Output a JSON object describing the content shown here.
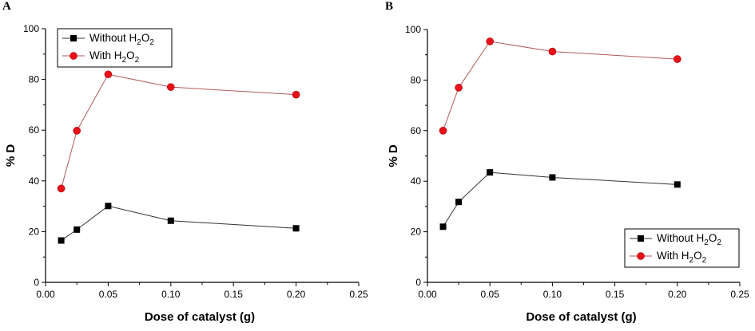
{
  "chart_data": [
    {
      "type": "line",
      "panel_label": "A",
      "xlabel": "Dose of catalyst (g)",
      "ylabel": "% D",
      "xlim": [
        0.0,
        0.25
      ],
      "ylim": [
        0,
        100
      ],
      "xticks": [
        "0.00",
        "0.05",
        "0.10",
        "0.15",
        "0.20",
        "0.25"
      ],
      "yticks": [
        "0",
        "20",
        "40",
        "60",
        "80",
        "100"
      ],
      "legend_position": "top-left",
      "grid": false,
      "x": [
        0.0125,
        0.025,
        0.05,
        0.1,
        0.2
      ],
      "series": [
        {
          "name": "Without H2O2",
          "marker": "square",
          "color": "#000000",
          "line_color": "#333333",
          "values": [
            16.5,
            20.8,
            30.1,
            24.3,
            21.3
          ]
        },
        {
          "name": "With H2O2",
          "marker": "circle",
          "color": "#e8101a",
          "line_color": "#b05a5a",
          "values": [
            37.0,
            59.8,
            82.0,
            77.0,
            74.0
          ]
        }
      ]
    },
    {
      "type": "line",
      "panel_label": "B",
      "xlabel": "Dose of catalyst (g)",
      "ylabel": "% D",
      "xlim": [
        0.0,
        0.25
      ],
      "ylim": [
        0,
        100
      ],
      "xticks": [
        "0.00",
        "0.05",
        "0.10",
        "0.15",
        "0.20",
        "0.25"
      ],
      "yticks": [
        "0",
        "20",
        "40",
        "60",
        "80",
        "100"
      ],
      "legend_position": "bottom-right",
      "grid": false,
      "x": [
        0.0125,
        0.025,
        0.05,
        0.1,
        0.2
      ],
      "series": [
        {
          "name": "Without H2O2",
          "marker": "square",
          "color": "#000000",
          "line_color": "#333333",
          "values": [
            22.0,
            31.8,
            43.5,
            41.5,
            38.7
          ]
        },
        {
          "name": "With H2O2",
          "marker": "circle",
          "color": "#e8101a",
          "line_color": "#b05a5a",
          "values": [
            60.0,
            77.0,
            95.3,
            91.3,
            88.3
          ]
        }
      ]
    }
  ]
}
